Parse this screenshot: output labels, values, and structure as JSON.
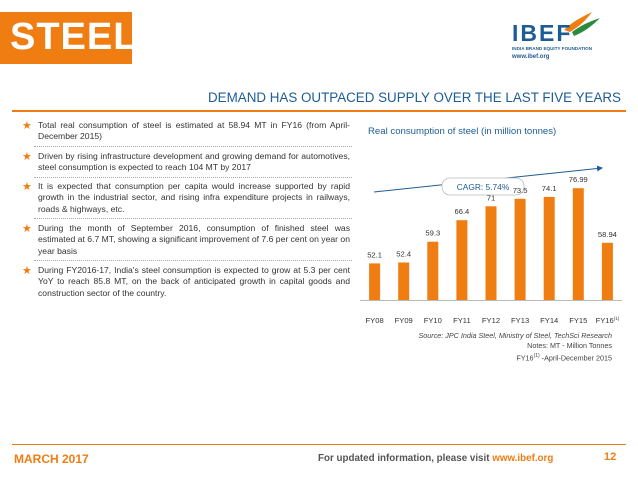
{
  "header": {
    "title": "STEEL",
    "logo_text": "IBEF",
    "logo_sub": "INDIA BRAND EQUITY FOUNDATION",
    "logo_url": "www.ibef.org",
    "brand_color": "#f07d12",
    "accent_color": "#1d5c94"
  },
  "heading": "DEMAND HAS OUTPACED SUPPLY OVER THE LAST FIVE YEARS",
  "bullets": [
    "Total real consumption of steel is estimated at 58.94 MT in FY16 (from April-December 2015)",
    "Driven by rising infrastructure development and growing demand for automotives, steel consumption is expected to reach 104 MT by 2017",
    "It is expected that consumption per capita would increase supported by rapid growth in the industrial sector, and rising infra expenditure projects in railways, roads & highways, etc.",
    "During the month of September 2016, consumption of finished steel was estimated at 6.7 MT, showing a significant improvement of 7.6 per cent on year on year basis",
    "During FY2016-17, India's steel consumption is expected to grow at 5.3 per cent YoY to reach 85.8 MT, on the back of anticipated growth in capital goods and construction sector of the country."
  ],
  "chart_data": {
    "type": "bar",
    "title": "Real consumption of steel (in million tonnes)",
    "categories": [
      "FY08",
      "FY09",
      "FY10",
      "FY11",
      "FY12",
      "FY13",
      "FY14",
      "FY15",
      "FY16"
    ],
    "last_category_superscript": "(1)",
    "values": [
      52.1,
      52.4,
      59.3,
      66.4,
      71,
      73.5,
      74.1,
      76.99,
      58.94
    ],
    "value_labels": [
      "52.1",
      "52.4",
      "59.3",
      "66.4",
      "71",
      "73.5",
      "74.1",
      "76.99",
      "58.94"
    ],
    "annotation": "CAGR: 5.74%",
    "bar_color": "#f07d12",
    "ylim": [
      0,
      85
    ]
  },
  "notes": {
    "source": "Source: JPC India Steel, Ministry of Steel, TechSci Research",
    "note1": "Notes: MT - Million Tonnes",
    "note2_sup": "(1)",
    "note2_prefix": "FY16",
    "note2_suffix": " -April-December 2015"
  },
  "footer": {
    "date": "MARCH 2017",
    "text": "For updated information, please visit ",
    "url": "www.ibef.org",
    "page": "12"
  }
}
